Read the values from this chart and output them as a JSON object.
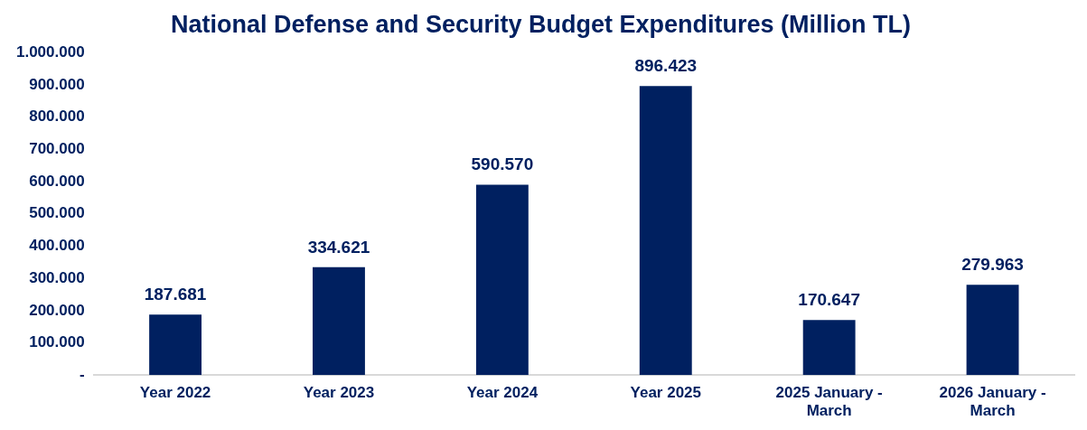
{
  "chart_data": {
    "type": "bar",
    "title": "National Defense and Security Budget Expenditures (Million TL)",
    "categories": [
      "Year 2022",
      "Year 2023",
      "Year 2024",
      "Year 2025",
      "2025 January - March",
      "2026 January - March"
    ],
    "values": [
      187681,
      334621,
      590570,
      896423,
      170647,
      279963
    ],
    "value_labels": [
      "187.681",
      "334.621",
      "590.570",
      "896.423",
      "170.647",
      "279.963"
    ],
    "color": "#002060",
    "ylim": [
      0,
      1000000
    ],
    "yticks": [
      {
        "value": 0,
        "label": "-"
      },
      {
        "value": 100000,
        "label": "100.000"
      },
      {
        "value": 200000,
        "label": "200.000"
      },
      {
        "value": 300000,
        "label": "300.000"
      },
      {
        "value": 400000,
        "label": "400.000"
      },
      {
        "value": 500000,
        "label": "500.000"
      },
      {
        "value": 600000,
        "label": "600.000"
      },
      {
        "value": 700000,
        "label": "700.000"
      },
      {
        "value": 800000,
        "label": "800.000"
      },
      {
        "value": 900000,
        "label": "900.000"
      },
      {
        "value": 1000000,
        "label": "1.000.000"
      }
    ],
    "grid": false,
    "legend": false
  }
}
